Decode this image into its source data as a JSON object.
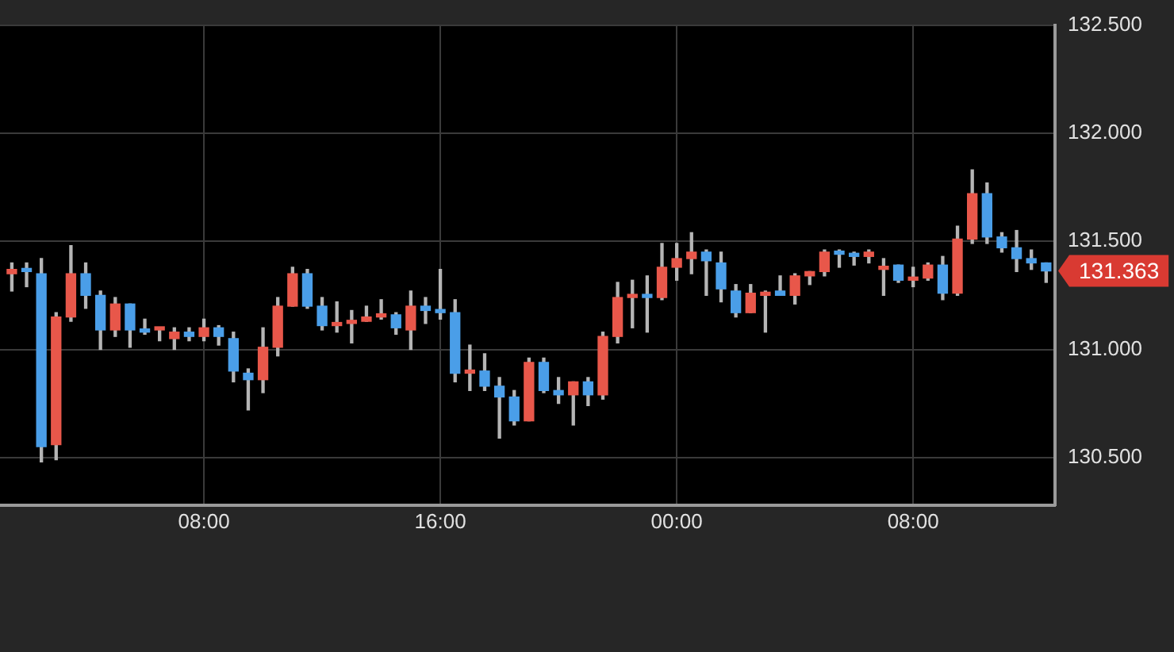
{
  "chart_data": {
    "type": "candlestick",
    "x": [
      "--01-01T01:30",
      "--01-01T02:00",
      "--01-01T02:30",
      "--01-01T03:00",
      "--01-01T03:30",
      "--01-01T04:00",
      "--01-01T04:30",
      "--01-01T05:00",
      "--01-01T05:30",
      "--01-01T06:00",
      "--01-01T06:30",
      "--01-01T07:00",
      "--01-01T07:30",
      "--01-01T08:00",
      "--01-01T08:30",
      "--01-01T09:00",
      "--01-01T09:30",
      "--01-01T10:00",
      "--01-01T10:30",
      "--01-01T11:00",
      "--01-01T11:30",
      "--01-01T12:00",
      "--01-01T12:30",
      "--01-01T13:00",
      "--01-01T13:30",
      "--01-01T14:00",
      "--01-01T14:30",
      "--01-01T15:00",
      "--01-01T15:30",
      "--01-01T16:00",
      "--01-01T16:30",
      "--01-01T17:00",
      "--01-01T17:30",
      "--01-01T18:00",
      "--01-01T18:30",
      "--01-01T19:00",
      "--01-01T19:30",
      "--01-01T20:00",
      "--01-01T20:30",
      "--01-01T21:00",
      "--01-01T21:30",
      "--01-01T22:00",
      "--01-01T22:30",
      "--01-01T23:00",
      "--01-01T23:30",
      "--01-02T00:00",
      "--01-02T00:30",
      "--01-02T01:00",
      "--01-02T01:30",
      "--01-02T02:00",
      "--01-02T02:30",
      "--01-02T03:00",
      "--01-02T03:30",
      "--01-02T04:00",
      "--01-02T04:30",
      "--01-02T05:00",
      "--01-02T05:30",
      "--01-02T06:00",
      "--01-02T06:30",
      "--01-02T07:00",
      "--01-02T07:30",
      "--01-02T08:00",
      "--01-02T08:30",
      "--01-02T09:00",
      "--01-02T09:30",
      "--01-02T10:00",
      "--01-02T10:30",
      "--01-02T11:00",
      "--01-02T11:30",
      "--01-02T12:00",
      "--01-02T12:30"
    ],
    "ohlc": [
      [
        131.35,
        131.4,
        131.27,
        131.37
      ],
      [
        131.37,
        131.4,
        131.29,
        131.36
      ],
      [
        131.35,
        131.42,
        130.48,
        130.55
      ],
      [
        130.56,
        131.17,
        130.49,
        131.15
      ],
      [
        131.15,
        131.48,
        131.13,
        131.35
      ],
      [
        131.35,
        131.4,
        131.19,
        131.25
      ],
      [
        131.25,
        131.27,
        131.0,
        131.09
      ],
      [
        131.09,
        131.24,
        131.06,
        131.21
      ],
      [
        131.21,
        131.21,
        131.01,
        131.09
      ],
      [
        131.09,
        131.14,
        131.07,
        131.08
      ],
      [
        131.09,
        131.1,
        131.04,
        131.1
      ],
      [
        131.05,
        131.1,
        131.0,
        131.08
      ],
      [
        131.08,
        131.1,
        131.04,
        131.06
      ],
      [
        131.06,
        131.14,
        131.04,
        131.1
      ],
      [
        131.1,
        131.11,
        131.02,
        131.06
      ],
      [
        131.05,
        131.08,
        130.85,
        130.9
      ],
      [
        130.89,
        130.91,
        130.72,
        130.86
      ],
      [
        130.86,
        131.1,
        130.8,
        131.01
      ],
      [
        131.01,
        131.24,
        130.97,
        131.2
      ],
      [
        131.2,
        131.38,
        131.2,
        131.35
      ],
      [
        131.35,
        131.37,
        131.19,
        131.2
      ],
      [
        131.2,
        131.24,
        131.09,
        131.11
      ],
      [
        131.11,
        131.22,
        131.08,
        131.12
      ],
      [
        131.12,
        131.18,
        131.03,
        131.13
      ],
      [
        131.13,
        131.2,
        131.13,
        131.15
      ],
      [
        131.15,
        131.23,
        131.14,
        131.16
      ],
      [
        131.16,
        131.17,
        131.07,
        131.1
      ],
      [
        131.09,
        131.27,
        131.0,
        131.2
      ],
      [
        131.2,
        131.24,
        131.12,
        131.18
      ],
      [
        131.18,
        131.37,
        131.14,
        131.17
      ],
      [
        131.17,
        131.23,
        130.85,
        130.89
      ],
      [
        130.89,
        131.02,
        130.81,
        130.9
      ],
      [
        130.9,
        130.98,
        130.81,
        130.83
      ],
      [
        130.83,
        130.87,
        130.59,
        130.78
      ],
      [
        130.78,
        130.81,
        130.65,
        130.67
      ],
      [
        130.67,
        130.96,
        130.67,
        130.94
      ],
      [
        130.94,
        130.96,
        130.8,
        130.81
      ],
      [
        130.81,
        130.87,
        130.75,
        130.79
      ],
      [
        130.79,
        130.85,
        130.65,
        130.85
      ],
      [
        130.85,
        130.87,
        130.74,
        130.79
      ],
      [
        130.79,
        131.08,
        130.77,
        131.06
      ],
      [
        131.06,
        131.31,
        131.03,
        131.24
      ],
      [
        131.24,
        131.32,
        131.1,
        131.25
      ],
      [
        131.25,
        131.34,
        131.08,
        131.24
      ],
      [
        131.24,
        131.49,
        131.23,
        131.38
      ],
      [
        131.38,
        131.49,
        131.32,
        131.42
      ],
      [
        131.42,
        131.54,
        131.35,
        131.45
      ],
      [
        131.45,
        131.46,
        131.25,
        131.41
      ],
      [
        131.4,
        131.45,
        131.22,
        131.28
      ],
      [
        131.27,
        131.3,
        131.15,
        131.17
      ],
      [
        131.17,
        131.3,
        131.17,
        131.26
      ],
      [
        131.25,
        131.27,
        131.08,
        131.26
      ],
      [
        131.27,
        131.34,
        131.25,
        131.25
      ],
      [
        131.25,
        131.35,
        131.21,
        131.34
      ],
      [
        131.34,
        131.36,
        131.3,
        131.36
      ],
      [
        131.36,
        131.46,
        131.34,
        131.45
      ],
      [
        131.45,
        131.46,
        131.38,
        131.44
      ],
      [
        131.44,
        131.45,
        131.39,
        131.43
      ],
      [
        131.43,
        131.46,
        131.4,
        131.45
      ],
      [
        131.37,
        131.42,
        131.25,
        131.38
      ],
      [
        131.39,
        131.39,
        131.31,
        131.32
      ],
      [
        131.32,
        131.38,
        131.29,
        131.33
      ],
      [
        131.33,
        131.4,
        131.32,
        131.39
      ],
      [
        131.39,
        131.43,
        131.23,
        131.26
      ],
      [
        131.26,
        131.57,
        131.25,
        131.51
      ],
      [
        131.51,
        131.83,
        131.49,
        131.72
      ],
      [
        131.72,
        131.77,
        131.49,
        131.52
      ],
      [
        131.52,
        131.54,
        131.45,
        131.47
      ],
      [
        131.47,
        131.55,
        131.36,
        131.42
      ],
      [
        131.42,
        131.46,
        131.37,
        131.4
      ],
      [
        131.4,
        131.4,
        131.31,
        131.363
      ]
    ],
    "colors": [
      "#e8574a",
      "#4a9ee8",
      "#4a9ee8",
      "#e8574a",
      "#e8574a",
      "#4a9ee8",
      "#4a9ee8",
      "#e8574a",
      "#4a9ee8",
      "#4a9ee8",
      "#e8574a",
      "#e8574a",
      "#4a9ee8",
      "#e8574a",
      "#4a9ee8",
      "#4a9ee8",
      "#4a9ee8",
      "#e8574a",
      "#e8574a",
      "#e8574a",
      "#4a9ee8",
      "#4a9ee8",
      "#e8574a",
      "#e8574a",
      "#e8574a",
      "#e8574a",
      "#4a9ee8",
      "#e8574a",
      "#4a9ee8",
      "#4a9ee8",
      "#4a9ee8",
      "#e8574a",
      "#4a9ee8",
      "#4a9ee8",
      "#4a9ee8",
      "#e8574a",
      "#4a9ee8",
      "#4a9ee8",
      "#e8574a",
      "#4a9ee8",
      "#e8574a",
      "#e8574a",
      "#e8574a",
      "#4a9ee8",
      "#e8574a",
      "#e8574a",
      "#e8574a",
      "#4a9ee8",
      "#4a9ee8",
      "#4a9ee8",
      "#e8574a",
      "#e8574a",
      "#4a9ee8",
      "#e8574a",
      "#e8574a",
      "#e8574a",
      "#4a9ee8",
      "#4a9ee8",
      "#e8574a",
      "#e8574a",
      "#4a9ee8",
      "#e8574a",
      "#e8574a",
      "#4a9ee8",
      "#e8574a",
      "#e8574a",
      "#4a9ee8",
      "#4a9ee8",
      "#4a9ee8",
      "#4a9ee8",
      "#4a9ee8"
    ],
    "xlim": [
      "--01-01T01:06",
      "--01-02T12:48"
    ],
    "xticks": [
      {
        "value": "--01-01T08:00",
        "label": "08:00"
      },
      {
        "value": "--01-01T16:00",
        "label": "16:00"
      },
      {
        "value": "--01-02T00:00",
        "label": "00:00"
      },
      {
        "value": "--01-02T08:00",
        "label": "08:00"
      }
    ],
    "ylim": [
      130.28,
      132.5
    ],
    "yticks": [
      {
        "value": 130.5,
        "label": "130.500"
      },
      {
        "value": 131,
        "label": "131.000"
      },
      {
        "value": 131.5,
        "label": "131.500"
      },
      {
        "value": 132,
        "label": "132.000"
      },
      {
        "value": 132.5,
        "label": "132.500"
      }
    ],
    "grid": true,
    "annotations": [
      "131.363"
    ]
  }
}
